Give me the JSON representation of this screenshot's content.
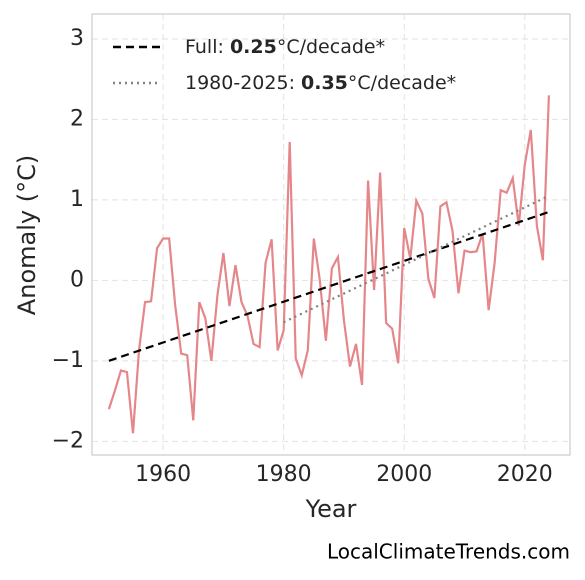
{
  "chart_data": {
    "type": "line",
    "x_label": "Year",
    "y_label": "Anomaly (°C)",
    "footer": "LocalClimateTrends.com",
    "xlim": [
      1948.2,
      2027.5
    ],
    "xticks": [
      1960,
      1980,
      2000,
      2020
    ],
    "ylim": [
      -2.17,
      3.31
    ],
    "yticks": [
      {
        "value": -2,
        "label": "−2"
      },
      {
        "value": -1,
        "label": "−1"
      },
      0,
      1,
      2,
      3
    ],
    "grid": true,
    "legend": "upper left",
    "series": [
      {
        "color": "#e5878a",
        "style": "solid",
        "x": [
          1951,
          1952,
          1953,
          1954,
          1955,
          1956,
          1957,
          1958,
          1959,
          1960,
          1961,
          1962,
          1963,
          1964,
          1965,
          1966,
          1967,
          1968,
          1969,
          1970,
          1971,
          1972,
          1973,
          1974,
          1975,
          1976,
          1977,
          1978,
          1979,
          1980,
          1981,
          1982,
          1983,
          1984,
          1985,
          1986,
          1987,
          1988,
          1989,
          1990,
          1991,
          1992,
          1993,
          1994,
          1995,
          1996,
          1997,
          1998,
          1999,
          2000,
          2001,
          2002,
          2003,
          2004,
          2005,
          2006,
          2007,
          2008,
          2009,
          2010,
          2011,
          2012,
          2013,
          2014,
          2015,
          2016,
          2017,
          2018,
          2019,
          2020,
          2021,
          2022,
          2023,
          2024
        ],
        "values": [
          -1.6,
          -1.37,
          -1.12,
          -1.14,
          -1.9,
          -0.87,
          -0.27,
          -0.26,
          0.4,
          0.52,
          0.52,
          -0.31,
          -0.91,
          -0.93,
          -1.74,
          -0.27,
          -0.47,
          -1.0,
          -0.19,
          0.34,
          -0.32,
          0.19,
          -0.27,
          -0.44,
          -0.79,
          -0.83,
          0.22,
          0.51,
          -0.87,
          -0.62,
          1.72,
          -0.97,
          -1.18,
          -0.87,
          0.52,
          0,
          -0.75,
          0.15,
          0.29,
          -0.5,
          -1.07,
          -0.79,
          -1.3,
          1.24,
          -0.12,
          1.34,
          -0.53,
          -0.6,
          -1.03,
          0.65,
          0.27,
          0.99,
          0.83,
          0.02,
          -0.22,
          0.92,
          0.97,
          0.62,
          -0.16,
          0.37,
          0.35,
          0.36,
          0.58,
          -0.37,
          0.22,
          1.12,
          1.09,
          1.27,
          0.68,
          1.44,
          1.87,
          0.68,
          0.25,
          2.3
        ]
      },
      {
        "name_parts": [
          "Full: ",
          "0.25",
          "°C/decade*"
        ],
        "color": "#000000",
        "style": "dashed",
        "x": [
          1951,
          2024
        ],
        "values": [
          -1.0,
          0.85
        ]
      },
      {
        "name_parts": [
          "1980-2025: ",
          "0.35",
          "°C/decade*"
        ],
        "color": "#808080",
        "style": "dotted",
        "x": [
          1980,
          2024
        ],
        "values": [
          -0.52,
          1.05
        ]
      }
    ]
  }
}
